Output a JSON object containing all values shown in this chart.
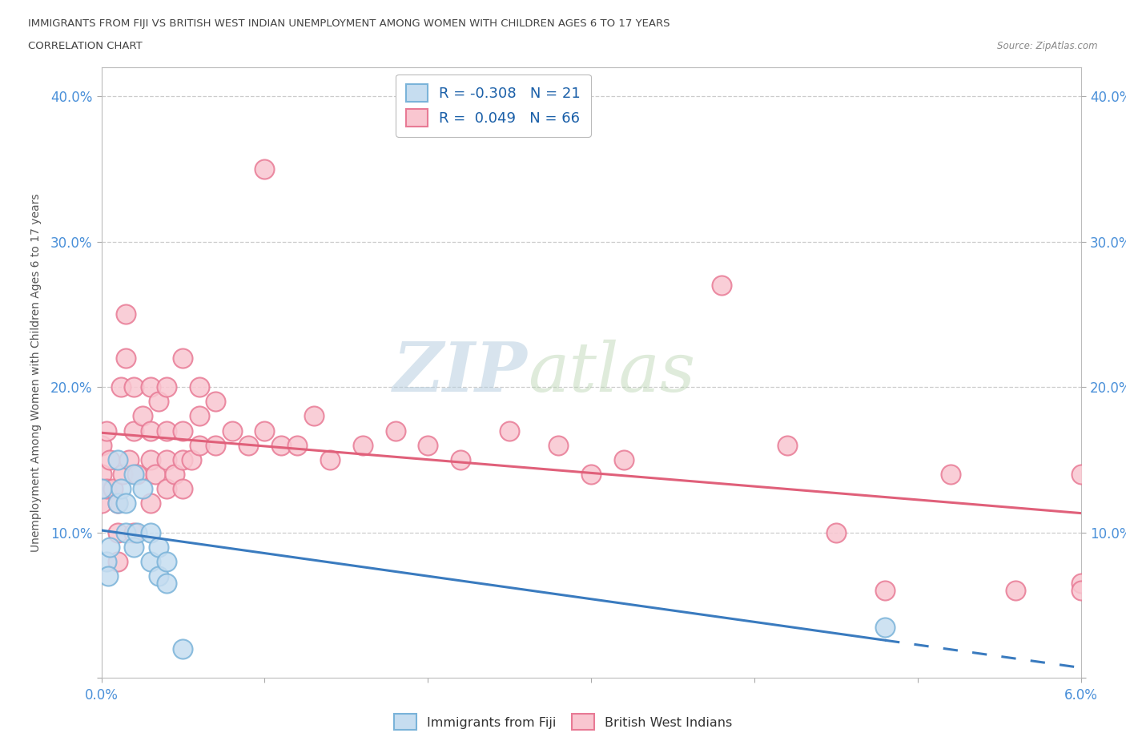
{
  "title_line1": "IMMIGRANTS FROM FIJI VS BRITISH WEST INDIAN UNEMPLOYMENT AMONG WOMEN WITH CHILDREN AGES 6 TO 17 YEARS",
  "title_line2": "CORRELATION CHART",
  "source": "Source: ZipAtlas.com",
  "ylabel": "Unemployment Among Women with Children Ages 6 to 17 years",
  "xlim": [
    0.0,
    0.06
  ],
  "ylim": [
    0.0,
    0.42
  ],
  "fiji_R": -0.308,
  "fiji_N": 21,
  "bwi_R": 0.049,
  "bwi_N": 66,
  "fiji_face_color": "#c6ddf0",
  "fiji_edge_color": "#7ab3d9",
  "bwi_face_color": "#f9c6d0",
  "bwi_edge_color": "#e87a95",
  "fiji_line_color": "#3a7bbf",
  "bwi_line_color": "#e0607a",
  "watermark_color": "#c8d8ea",
  "fiji_scatter_x": [
    0.0,
    0.0003,
    0.0004,
    0.0005,
    0.001,
    0.001,
    0.0012,
    0.0015,
    0.0015,
    0.002,
    0.002,
    0.0022,
    0.0025,
    0.003,
    0.003,
    0.0035,
    0.0035,
    0.004,
    0.004,
    0.005,
    0.048
  ],
  "fiji_scatter_y": [
    0.13,
    0.08,
    0.07,
    0.09,
    0.12,
    0.15,
    0.13,
    0.1,
    0.12,
    0.09,
    0.14,
    0.1,
    0.13,
    0.08,
    0.1,
    0.07,
    0.09,
    0.065,
    0.08,
    0.02,
    0.035
  ],
  "bwi_scatter_x": [
    0.0,
    0.0,
    0.0,
    0.0003,
    0.0003,
    0.0005,
    0.0007,
    0.001,
    0.001,
    0.001,
    0.0012,
    0.0013,
    0.0015,
    0.0015,
    0.0017,
    0.002,
    0.002,
    0.002,
    0.0022,
    0.0025,
    0.003,
    0.003,
    0.003,
    0.003,
    0.0033,
    0.0035,
    0.004,
    0.004,
    0.004,
    0.004,
    0.0045,
    0.005,
    0.005,
    0.005,
    0.005,
    0.0055,
    0.006,
    0.006,
    0.006,
    0.007,
    0.007,
    0.008,
    0.009,
    0.01,
    0.01,
    0.011,
    0.012,
    0.013,
    0.014,
    0.016,
    0.018,
    0.02,
    0.022,
    0.025,
    0.028,
    0.03,
    0.032,
    0.038,
    0.042,
    0.045,
    0.048,
    0.052,
    0.056,
    0.06,
    0.06,
    0.06
  ],
  "bwi_scatter_y": [
    0.12,
    0.14,
    0.16,
    0.13,
    0.17,
    0.15,
    0.13,
    0.08,
    0.1,
    0.12,
    0.2,
    0.14,
    0.22,
    0.25,
    0.15,
    0.1,
    0.17,
    0.2,
    0.14,
    0.18,
    0.12,
    0.15,
    0.17,
    0.2,
    0.14,
    0.19,
    0.13,
    0.15,
    0.17,
    0.2,
    0.14,
    0.13,
    0.15,
    0.17,
    0.22,
    0.15,
    0.16,
    0.18,
    0.2,
    0.16,
    0.19,
    0.17,
    0.16,
    0.17,
    0.35,
    0.16,
    0.16,
    0.18,
    0.15,
    0.16,
    0.17,
    0.16,
    0.15,
    0.17,
    0.16,
    0.14,
    0.15,
    0.27,
    0.16,
    0.1,
    0.06,
    0.14,
    0.06,
    0.14,
    0.065,
    0.06
  ]
}
